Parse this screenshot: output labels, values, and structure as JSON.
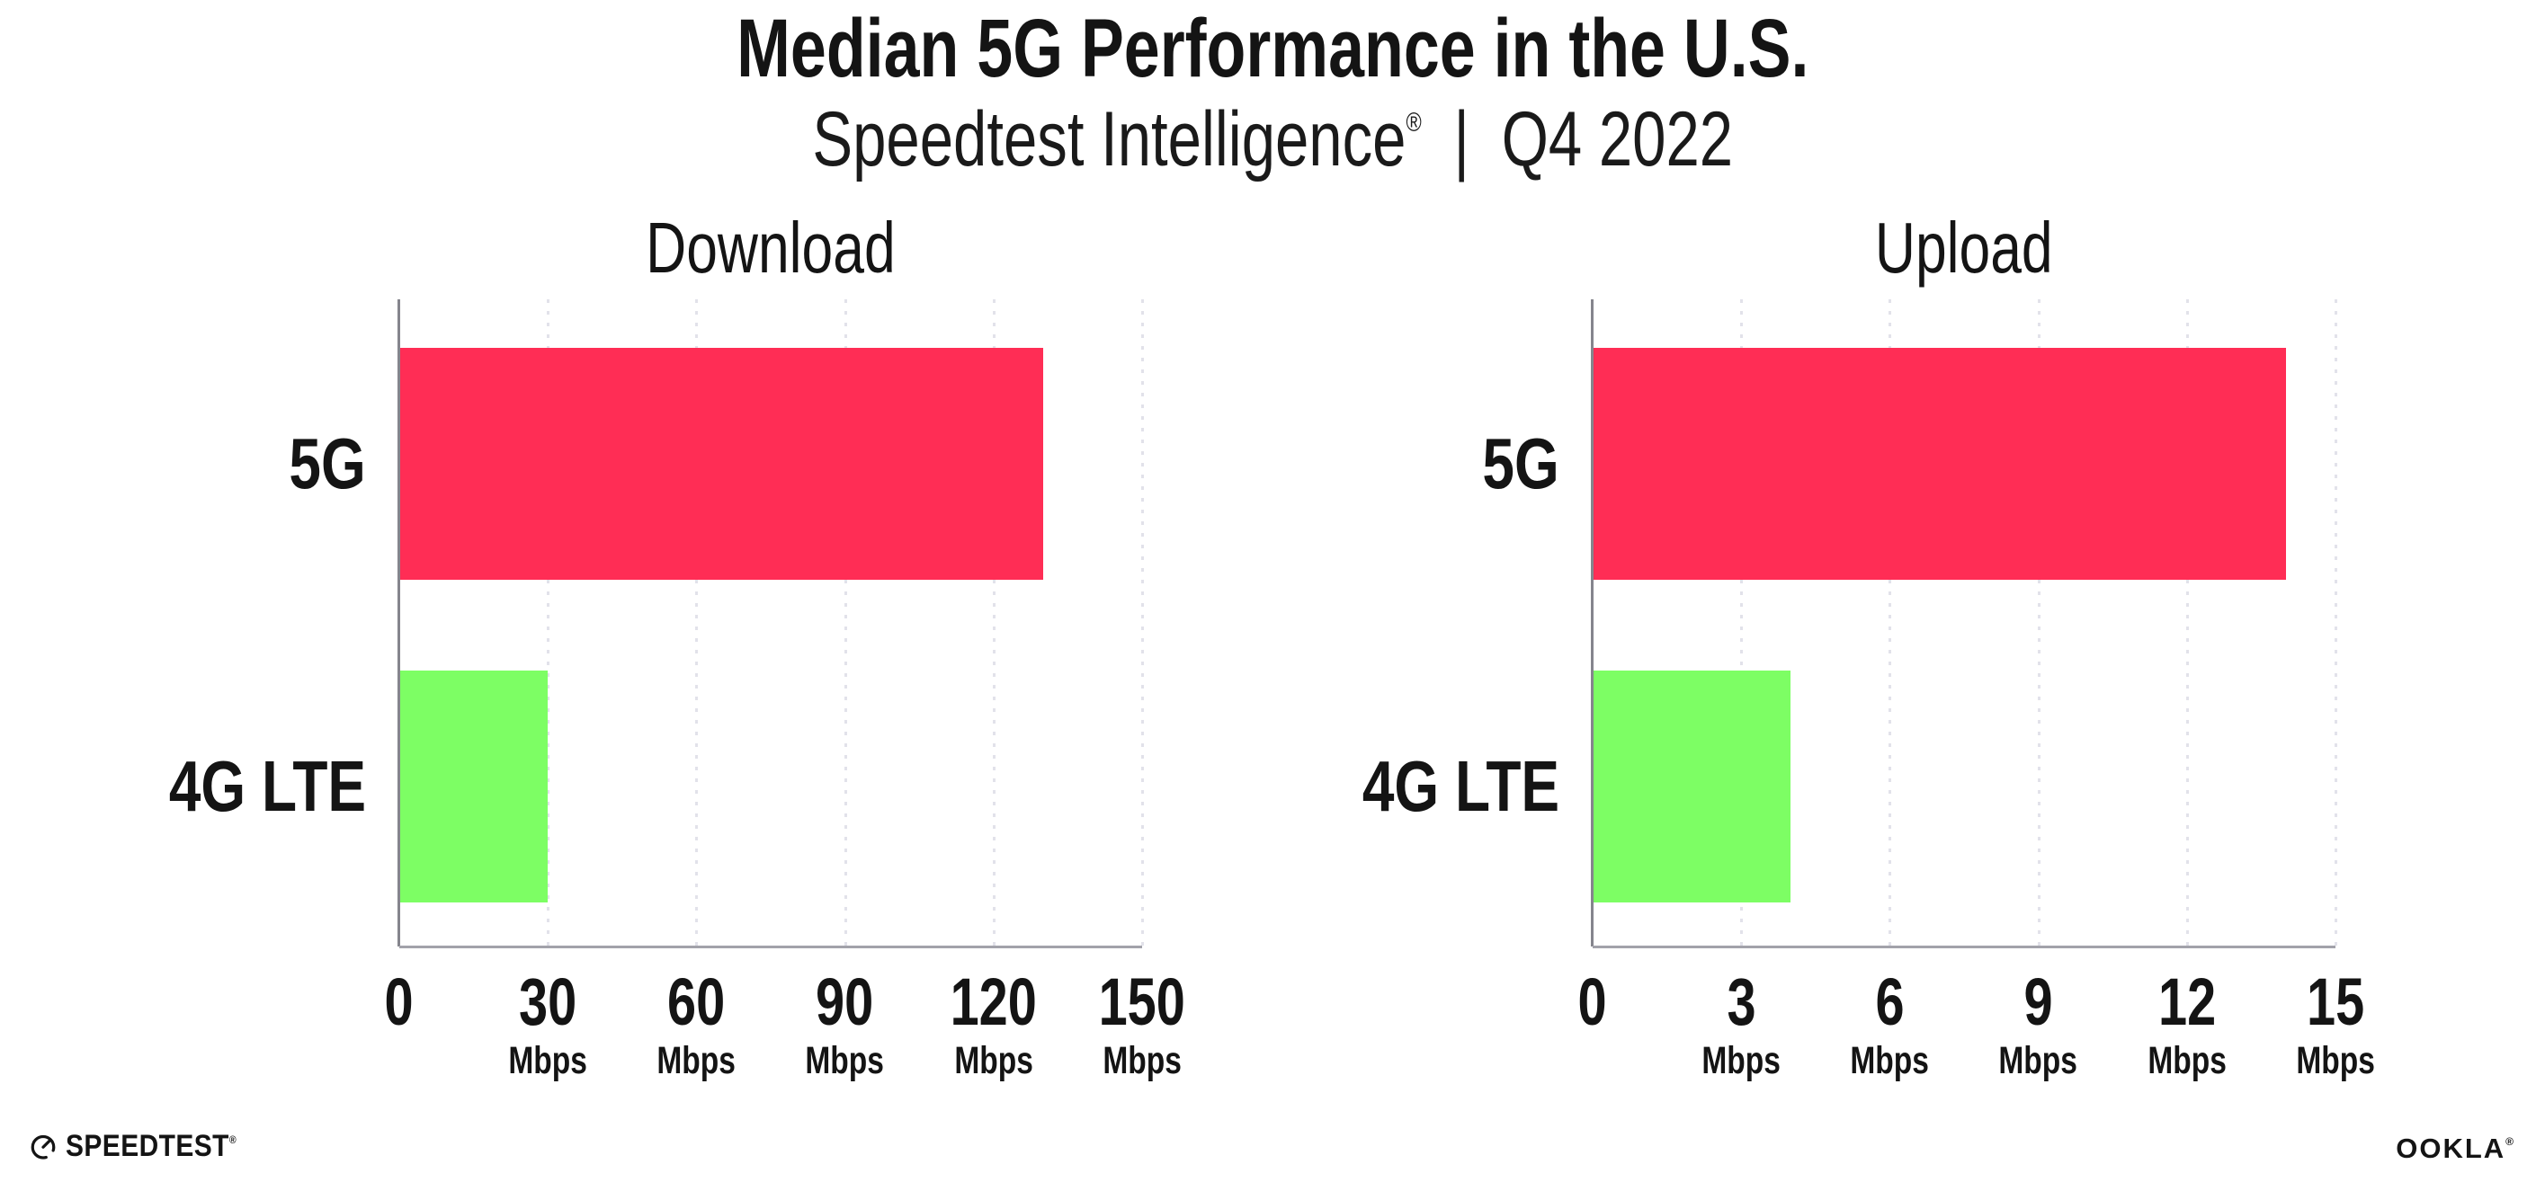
{
  "header": {
    "title": "Median 5G Performance in the U.S.",
    "subtitle_brand": "Speedtest Intelligence",
    "subtitle_reg": "®",
    "subtitle_separator": "|",
    "subtitle_period": "Q4 2022"
  },
  "colors": {
    "background": "#FFFFFF",
    "bar_5g": "#FF2D55",
    "bar_4g_lte": "#7DFE64",
    "gridline": "#E2E2EA",
    "x_axis": "#A2A2AA",
    "y_axis": "#85858D",
    "text": "#141414"
  },
  "chart_data": [
    {
      "type": "bar",
      "orientation": "horizontal",
      "title": "Download",
      "categories": [
        "5G",
        "4G LTE"
      ],
      "values": [
        130,
        30
      ],
      "unit": "Mbps",
      "xlabel": "",
      "ylabel": "",
      "xlim": [
        0,
        150
      ],
      "xticks": [
        0,
        30,
        60,
        90,
        120,
        150
      ],
      "bar_colors": [
        "#FF2D55",
        "#7DFE64"
      ],
      "grid": "vertical-dotted",
      "legend": "none"
    },
    {
      "type": "bar",
      "orientation": "horizontal",
      "title": "Upload",
      "categories": [
        "5G",
        "4G LTE"
      ],
      "values": [
        14,
        4
      ],
      "unit": "Mbps",
      "xlabel": "",
      "ylabel": "",
      "xlim": [
        0,
        15
      ],
      "xticks": [
        0,
        3,
        6,
        9,
        12,
        15
      ],
      "bar_colors": [
        "#FF2D55",
        "#7DFE64"
      ],
      "grid": "vertical-dotted",
      "legend": "none"
    }
  ],
  "footer": {
    "speedtest": "SPEEDTEST",
    "speedtest_mark": "®",
    "ookla": "OOKLA",
    "ookla_mark": "®"
  }
}
